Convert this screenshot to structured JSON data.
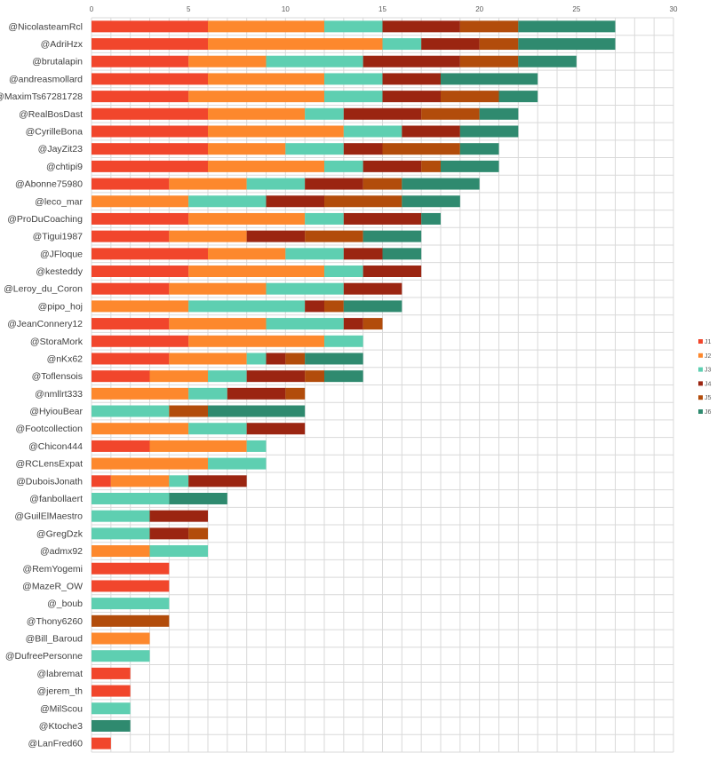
{
  "chart_data": {
    "type": "bar",
    "orientation": "horizontal",
    "stacked": true,
    "xlim": [
      0,
      30
    ],
    "xticks": [
      0,
      5,
      10,
      15,
      20,
      25,
      30
    ],
    "grid": true,
    "legend_position": "right",
    "categories": [
      "@NicolasteamRcl",
      "@AdriHzx",
      "@brutalapin",
      "@andreasmollard",
      "@MaximTs67281728",
      "@RealBosDast",
      "@CyrilleBona",
      "@JayZit23",
      "@chtipi9",
      "@Abonne75980",
      "@leco_mar",
      "@ProDuCoaching",
      "@Tigui1987",
      "@JFloque",
      "@kesteddy",
      "@Leroy_du_Coron",
      "@pipo_hoj",
      "@JeanConnery12",
      "@StoraMork",
      "@nKx62",
      "@Toflensois",
      "@nmllrt333",
      "@HyiouBear",
      "@Footcollection",
      "@Chicon444",
      "@RCLensExpat",
      "@DuboisJonath",
      "@fanbollaert",
      "@GuilElMaestro",
      "@GregDzk",
      "@admx92",
      "@RemYogemi",
      "@MazeR_OW",
      "@_boub",
      "@Thony6260",
      "@Bill_Baroud",
      "@DufreePersonne",
      "@labremat",
      "@jerem_th",
      "@MilScou",
      "@Ktoche3",
      "@LanFred60"
    ],
    "series": [
      {
        "name": "J1",
        "color": "#f1462c",
        "values": [
          6,
          6,
          5,
          6,
          5,
          6,
          6,
          6,
          6,
          4,
          0,
          5,
          4,
          6,
          5,
          4,
          0,
          4,
          5,
          4,
          3,
          0,
          0,
          0,
          3,
          0,
          1,
          0,
          0,
          0,
          0,
          4,
          4,
          0,
          0,
          0,
          0,
          2,
          2,
          0,
          0,
          1
        ]
      },
      {
        "name": "J2",
        "color": "#fd882d",
        "values": [
          6,
          9,
          4,
          6,
          7,
          5,
          7,
          4,
          6,
          4,
          5,
          6,
          4,
          4,
          7,
          5,
          5,
          5,
          7,
          4,
          3,
          5,
          0,
          5,
          5,
          6,
          3,
          0,
          0,
          0,
          3,
          0,
          0,
          0,
          0,
          3,
          0,
          0,
          0,
          0,
          0,
          0
        ]
      },
      {
        "name": "J3",
        "color": "#5ecfb1",
        "values": [
          3,
          2,
          5,
          3,
          3,
          2,
          3,
          3,
          2,
          3,
          4,
          2,
          0,
          3,
          2,
          4,
          6,
          4,
          2,
          1,
          2,
          2,
          4,
          3,
          1,
          3,
          1,
          4,
          3,
          3,
          3,
          0,
          0,
          4,
          0,
          0,
          3,
          0,
          0,
          2,
          0,
          0
        ]
      },
      {
        "name": "J4",
        "color": "#9b2511",
        "values": [
          4,
          3,
          5,
          3,
          3,
          4,
          3,
          2,
          3,
          3,
          3,
          4,
          3,
          2,
          3,
          3,
          1,
          1,
          0,
          1,
          3,
          3,
          0,
          3,
          0,
          0,
          3,
          0,
          3,
          2,
          0,
          0,
          0,
          0,
          0,
          0,
          0,
          0,
          0,
          0,
          0,
          0
        ]
      },
      {
        "name": "J5",
        "color": "#b24c0b",
        "values": [
          3,
          2,
          3,
          0,
          3,
          3,
          0,
          4,
          1,
          2,
          4,
          0,
          3,
          0,
          0,
          0,
          1,
          1,
          0,
          1,
          1,
          1,
          2,
          0,
          0,
          0,
          0,
          0,
          0,
          1,
          0,
          0,
          0,
          0,
          4,
          0,
          0,
          0,
          0,
          0,
          0,
          0
        ]
      },
      {
        "name": "J6",
        "color": "#2f8a6f",
        "values": [
          5,
          5,
          3,
          5,
          2,
          2,
          3,
          2,
          3,
          4,
          3,
          1,
          3,
          2,
          0,
          0,
          3,
          0,
          0,
          3,
          2,
          0,
          5,
          0,
          0,
          0,
          0,
          3,
          0,
          0,
          0,
          0,
          0,
          0,
          0,
          0,
          0,
          0,
          0,
          0,
          2,
          0
        ]
      }
    ]
  }
}
